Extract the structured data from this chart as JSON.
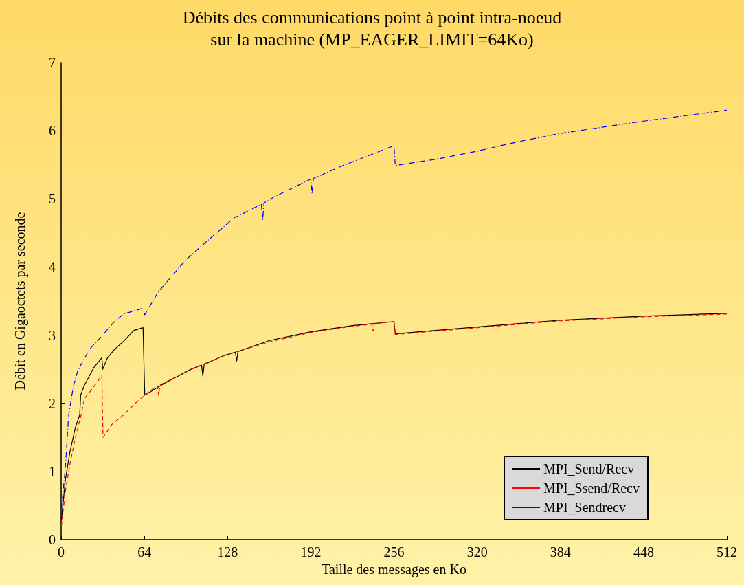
{
  "chart_data": {
    "type": "line",
    "title": "Débits des communications point à point intra-noeud\nsur la machine (MP_EAGER_LIMIT=64Ko)",
    "xlabel": "Taille des messages en Ko",
    "ylabel": "Débit en Gigaoctets par seconde",
    "xlim": [
      0,
      512
    ],
    "xticks": [
      0,
      64,
      128,
      192,
      256,
      320,
      384,
      448,
      512
    ],
    "ylim": [
      0,
      7
    ],
    "yticks": [
      0,
      1,
      2,
      3,
      4,
      5,
      6,
      7
    ],
    "grid": false,
    "legend": "bottom right",
    "marker": "none",
    "series": [
      {
        "name": "MPI_Send/Recv",
        "color": "#000000",
        "line_style": "solid",
        "x": [
          0.2,
          3.2,
          6.7,
          11,
          14.3,
          15,
          18,
          25,
          31.3,
          32,
          35.7,
          41,
          48,
          56,
          63,
          64.3,
          80,
          100,
          108,
          109,
          110,
          125,
          134,
          135,
          136,
          160,
          192,
          224,
          256,
          257,
          288,
          320,
          352,
          384,
          416,
          448,
          480,
          512
        ],
        "values": [
          0.28,
          0.87,
          1.28,
          1.65,
          1.83,
          2.12,
          2.27,
          2.52,
          2.67,
          2.5,
          2.67,
          2.79,
          2.91,
          3.07,
          3.11,
          2.12,
          2.3,
          2.5,
          2.56,
          2.4,
          2.57,
          2.7,
          2.75,
          2.62,
          2.76,
          2.92,
          3.05,
          3.14,
          3.2,
          3.02,
          3.07,
          3.12,
          3.17,
          3.22,
          3.25,
          3.28,
          3.3,
          3.32
        ]
      },
      {
        "name": "MPI_Ssend/Recv",
        "color": "#ff0000",
        "line_style": "dashed",
        "x": [
          0.2,
          3.2,
          6.7,
          11,
          15,
          18,
          25,
          31.3,
          32.2,
          39,
          48,
          57,
          64.3,
          74,
          75,
          76,
          100,
          128,
          160,
          192,
          224,
          239,
          240,
          241,
          256,
          257,
          288,
          320,
          352,
          384,
          416,
          448,
          480,
          512
        ],
        "values": [
          0.2,
          0.7,
          1.1,
          1.5,
          1.8,
          2.07,
          2.24,
          2.41,
          1.5,
          1.69,
          1.83,
          2.0,
          2.12,
          2.26,
          2.12,
          2.27,
          2.5,
          2.72,
          2.9,
          3.04,
          3.13,
          3.16,
          3.06,
          3.17,
          3.2,
          3.01,
          3.06,
          3.11,
          3.16,
          3.21,
          3.24,
          3.27,
          3.29,
          3.31
        ]
      },
      {
        "name": "MPI_Sendrecv",
        "color": "#0000ff",
        "line_style": "dashdot",
        "x": [
          0.2,
          3.2,
          5.8,
          9.3,
          12.8,
          21.7,
          30,
          41,
          48,
          62,
          64.3,
          74.5,
          95.6,
          111,
          133,
          154,
          155,
          156,
          164,
          192,
          193,
          194,
          217,
          256,
          257,
          288,
          320,
          352,
          384,
          416,
          448,
          480,
          512
        ],
        "values": [
          0.45,
          1.04,
          1.83,
          2.24,
          2.48,
          2.79,
          2.96,
          3.2,
          3.31,
          3.39,
          3.3,
          3.63,
          4.1,
          4.36,
          4.72,
          4.92,
          4.68,
          4.94,
          5.03,
          5.29,
          5.08,
          5.3,
          5.49,
          5.78,
          5.49,
          5.58,
          5.7,
          5.84,
          5.96,
          6.05,
          6.14,
          6.22,
          6.3
        ]
      }
    ]
  }
}
